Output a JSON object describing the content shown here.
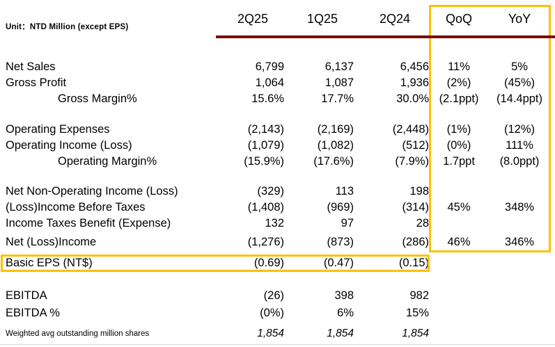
{
  "meta": {
    "unit_label": "Unit：NTD Million (except EPS)"
  },
  "columns": [
    "2Q25",
    "1Q25",
    "2Q24",
    "QoQ",
    "YoY"
  ],
  "rows": [
    {
      "label": "Net Sales",
      "values": [
        "6,799",
        "6,137",
        "6,456",
        "11%",
        "5%"
      ]
    },
    {
      "label": "Gross Profit",
      "values": [
        "1,064",
        "1,087",
        "1,936",
        "(2%)",
        "(45%)"
      ]
    },
    {
      "label": "Gross Margin%",
      "indent": true,
      "values": [
        "15.6%",
        "17.7%",
        "30.0%",
        "(2.1ppt)",
        "(14.4ppt)"
      ]
    },
    {
      "label": "Operating Expenses",
      "values": [
        "(2,143)",
        "(2,169)",
        "(2,448)",
        "(1%)",
        "(12%)"
      ]
    },
    {
      "label": "Operating Income (Loss)",
      "values": [
        "(1,079)",
        "(1,082)",
        "(512)",
        "(0%)",
        "111%"
      ]
    },
    {
      "label": "Operating Margin%",
      "indent": true,
      "values": [
        "(15.9%)",
        "(17.6%)",
        "(7.9%)",
        "1.7ppt",
        "(8.0ppt)"
      ]
    },
    {
      "label": "Net Non-Operating Income (Loss)",
      "values": [
        "(329)",
        "113",
        "198",
        "",
        ""
      ]
    },
    {
      "label": "(Loss)Income Before Taxes",
      "values": [
        "(1,408)",
        "(969)",
        "(314)",
        "45%",
        "348%"
      ]
    },
    {
      "label": "Income Taxes Benefit (Expense)",
      "values": [
        "132",
        "97",
        "28",
        "",
        ""
      ]
    },
    {
      "label": "Net (Loss)Income",
      "values": [
        "(1,276)",
        "(873)",
        "(286)",
        "46%",
        "346%"
      ]
    },
    {
      "label": "Basic EPS (NT$)",
      "highlight": true,
      "values": [
        "(0.69)",
        "(0.47)",
        "(0.15)",
        "",
        ""
      ]
    },
    {
      "label": "EBITDA",
      "values": [
        "(26)",
        "398",
        "982",
        "",
        ""
      ]
    },
    {
      "label": "EBITDA %",
      "values": [
        "(0%)",
        "6%",
        "15%",
        "",
        ""
      ]
    },
    {
      "label": "Weighted avg outstanding million shares",
      "small_label": true,
      "italic_values": true,
      "values": [
        "1,854",
        "1,854",
        "1,854",
        "",
        ""
      ]
    }
  ],
  "colors": {
    "accent_red": "#7d0505",
    "accent_gold": "#ffc000"
  }
}
